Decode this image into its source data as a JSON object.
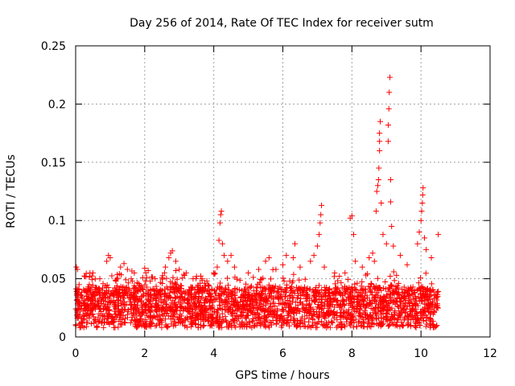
{
  "chart_data": {
    "type": "scatter",
    "title": "Day 256 of 2014, Rate Of TEC Index for receiver sutm",
    "xlabel": "GPS time / hours",
    "ylabel": "ROTI / TECUs",
    "xlim": [
      0,
      12
    ],
    "ylim": [
      0,
      0.25
    ],
    "x_ticks": [
      0,
      2,
      4,
      6,
      8,
      10,
      12
    ],
    "x_tick_labels": [
      "0",
      "2",
      "4",
      "6",
      "8",
      "10",
      "12"
    ],
    "y_ticks": [
      0,
      0.05,
      0.1,
      0.15,
      0.2,
      0.25
    ],
    "y_tick_labels": [
      "0",
      "0.05",
      "0.1",
      "0.15",
      "0.2",
      "0.25"
    ],
    "grid": true,
    "marker": "plus",
    "color": "#ff0000",
    "series": [
      {
        "name": "ROTI",
        "points": [
          [
            0.02,
            0.06
          ],
          [
            0.05,
            0.058
          ],
          [
            0.1,
            0.045
          ],
          [
            0.3,
            0.052
          ],
          [
            0.5,
            0.055
          ],
          [
            0.7,
            0.05
          ],
          [
            0.9,
            0.065
          ],
          [
            0.95,
            0.07
          ],
          [
            1.0,
            0.068
          ],
          [
            1.3,
            0.06
          ],
          [
            1.4,
            0.063
          ],
          [
            1.5,
            0.058
          ],
          [
            1.7,
            0.055
          ],
          [
            2.0,
            0.059
          ],
          [
            2.1,
            0.057
          ],
          [
            2.3,
            0.05
          ],
          [
            2.6,
            0.06
          ],
          [
            2.7,
            0.068
          ],
          [
            2.75,
            0.072
          ],
          [
            2.8,
            0.074
          ],
          [
            2.9,
            0.065
          ],
          [
            3.0,
            0.058
          ],
          [
            3.2,
            0.055
          ],
          [
            3.4,
            0.05
          ],
          [
            3.5,
            0.052
          ],
          [
            3.8,
            0.048
          ],
          [
            4.0,
            0.055
          ],
          [
            4.1,
            0.06
          ],
          [
            4.15,
            0.083
          ],
          [
            4.18,
            0.098
          ],
          [
            4.2,
            0.105
          ],
          [
            4.22,
            0.108
          ],
          [
            4.25,
            0.08
          ],
          [
            4.3,
            0.07
          ],
          [
            4.4,
            0.065
          ],
          [
            4.5,
            0.07
          ],
          [
            4.6,
            0.06
          ],
          [
            5.0,
            0.055
          ],
          [
            5.3,
            0.058
          ],
          [
            5.5,
            0.065
          ],
          [
            5.6,
            0.068
          ],
          [
            5.8,
            0.058
          ],
          [
            6.0,
            0.062
          ],
          [
            6.1,
            0.07
          ],
          [
            6.3,
            0.068
          ],
          [
            6.35,
            0.08
          ],
          [
            6.5,
            0.06
          ],
          [
            6.8,
            0.065
          ],
          [
            6.9,
            0.07
          ],
          [
            7.0,
            0.078
          ],
          [
            7.05,
            0.088
          ],
          [
            7.08,
            0.098
          ],
          [
            7.1,
            0.105
          ],
          [
            7.12,
            0.113
          ],
          [
            7.2,
            0.06
          ],
          [
            7.5,
            0.055
          ],
          [
            7.8,
            0.055
          ],
          [
            7.95,
            0.102
          ],
          [
            8.0,
            0.104
          ],
          [
            8.05,
            0.088
          ],
          [
            8.1,
            0.065
          ],
          [
            8.3,
            0.06
          ],
          [
            8.5,
            0.068
          ],
          [
            8.6,
            0.072
          ],
          [
            8.65,
            0.065
          ],
          [
            8.7,
            0.108
          ],
          [
            8.72,
            0.125
          ],
          [
            8.75,
            0.13
          ],
          [
            8.77,
            0.135
          ],
          [
            8.78,
            0.145
          ],
          [
            8.8,
            0.16
          ],
          [
            8.8,
            0.168
          ],
          [
            8.8,
            0.175
          ],
          [
            8.82,
            0.185
          ],
          [
            8.85,
            0.115
          ],
          [
            8.9,
            0.088
          ],
          [
            9.0,
            0.08
          ],
          [
            9.05,
            0.168
          ],
          [
            9.05,
            0.182
          ],
          [
            9.07,
            0.196
          ],
          [
            9.08,
            0.21
          ],
          [
            9.1,
            0.223
          ],
          [
            9.12,
            0.135
          ],
          [
            9.12,
            0.116
          ],
          [
            9.15,
            0.095
          ],
          [
            9.2,
            0.078
          ],
          [
            9.4,
            0.07
          ],
          [
            9.6,
            0.062
          ],
          [
            9.9,
            0.08
          ],
          [
            9.95,
            0.09
          ],
          [
            10.0,
            0.1
          ],
          [
            10.02,
            0.108
          ],
          [
            10.04,
            0.115
          ],
          [
            10.05,
            0.122
          ],
          [
            10.06,
            0.128
          ],
          [
            10.1,
            0.085
          ],
          [
            10.15,
            0.075
          ],
          [
            10.3,
            0.068
          ],
          [
            10.5,
            0.088
          ]
        ]
      }
    ]
  }
}
